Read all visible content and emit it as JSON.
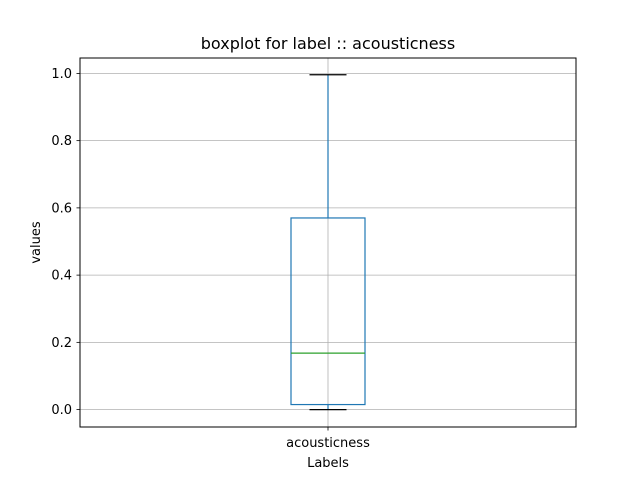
{
  "chart_data": {
    "type": "boxplot",
    "title": "boxplot for label :: acousticness",
    "xlabel": "Labels",
    "ylabel": "values",
    "categories": [
      "acousticness"
    ],
    "ylim": [
      -0.05,
      1.05
    ],
    "yticks": [
      0.0,
      0.2,
      0.4,
      0.6,
      0.8,
      1.0
    ],
    "ytick_labels": [
      "0.0",
      "0.2",
      "0.4",
      "0.6",
      "0.8",
      "1.0"
    ],
    "grid": true,
    "series": [
      {
        "whisker_low": 0.0,
        "q1": 0.015,
        "median": 0.168,
        "q3": 0.57,
        "whisker_high": 0.996
      }
    ],
    "colors": {
      "box": "#1f77b4",
      "median": "#2ca02c",
      "whisker_cap": "#000000",
      "grid": "#b0b0b0"
    }
  }
}
